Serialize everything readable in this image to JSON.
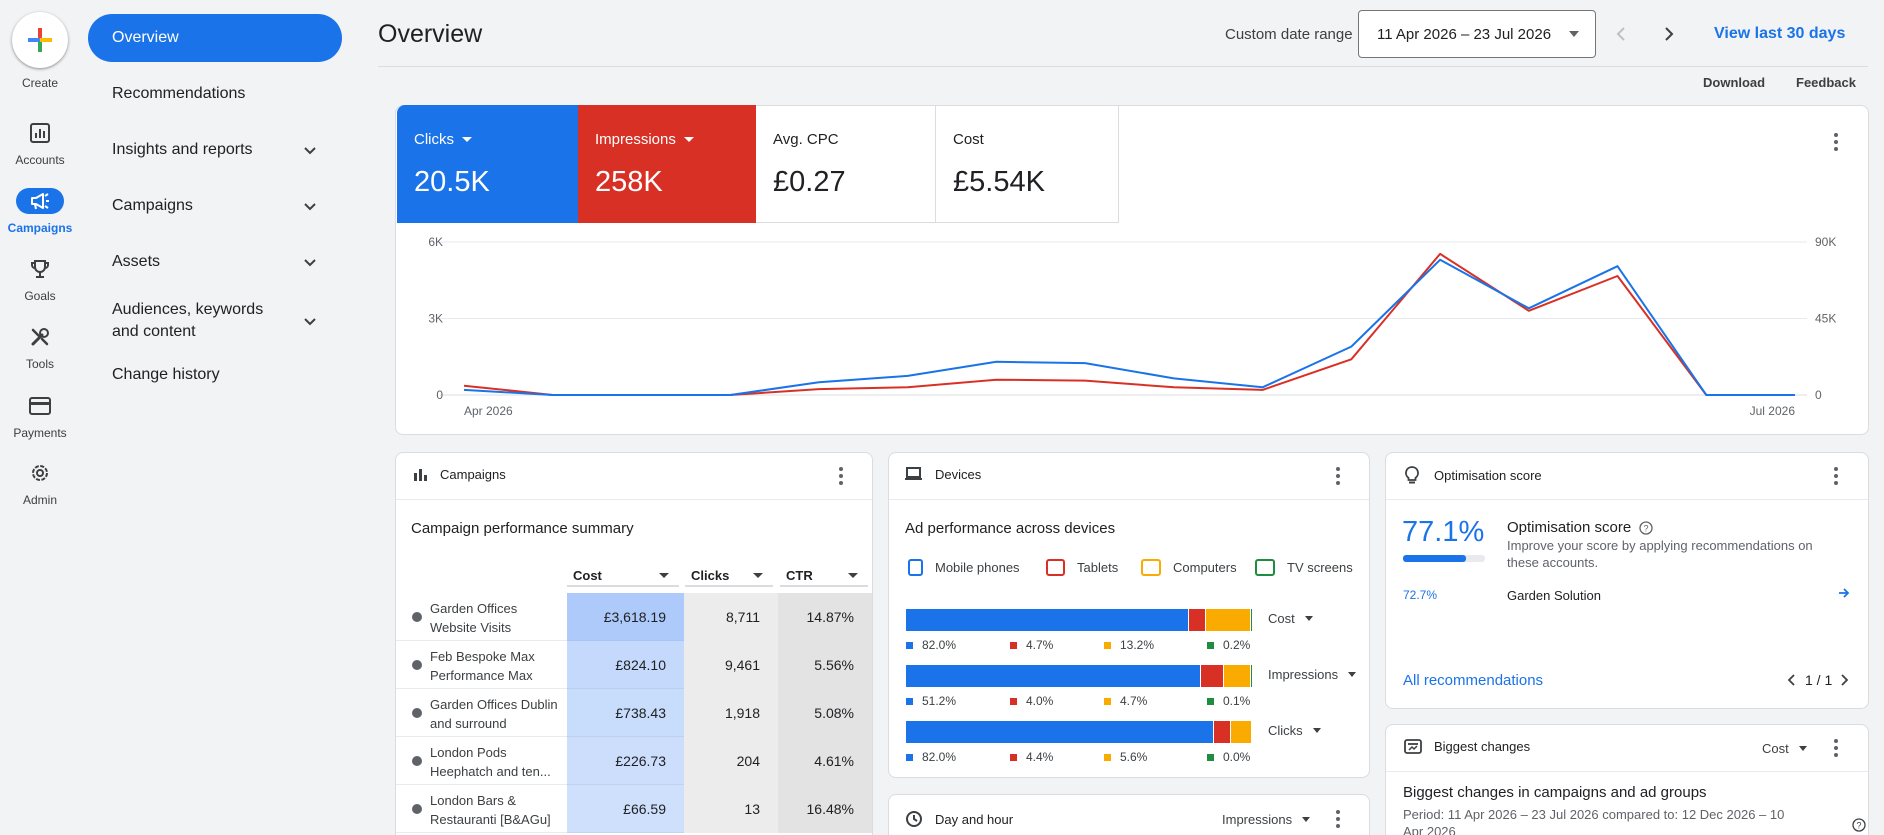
{
  "rail": {
    "create_label": "Create",
    "items": [
      {
        "label": "Accounts",
        "icon": "accounts-icon"
      },
      {
        "label": "Campaigns",
        "icon": "campaigns-icon"
      },
      {
        "label": "Goals",
        "icon": "goals-icon"
      },
      {
        "label": "Tools",
        "icon": "tools-icon"
      },
      {
        "label": "Payments",
        "icon": "payments-icon"
      },
      {
        "label": "Admin",
        "icon": "admin-icon"
      }
    ]
  },
  "nav": {
    "items": [
      {
        "label": "Overview"
      },
      {
        "label": "Recommendations"
      },
      {
        "label": "Insights and reports"
      },
      {
        "label": "Campaigns"
      },
      {
        "label": "Assets"
      },
      {
        "label": "Audiences, keywords and content"
      },
      {
        "label": "Change history"
      }
    ]
  },
  "header": {
    "title": "Overview",
    "date_label": "Custom date range",
    "date_value": "11 Apr 2026 – 23 Jul 2026",
    "view_last": "View last 30 days",
    "download": "Download",
    "feedback": "Feedback"
  },
  "metrics": [
    {
      "label": "Clicks",
      "value": "20.5K"
    },
    {
      "label": "Impressions",
      "value": "258K"
    },
    {
      "label": "Avg. CPC",
      "value": "£0.27"
    },
    {
      "label": "Cost",
      "value": "£5.54K"
    }
  ],
  "chart_data": {
    "type": "line",
    "x_start_label": "Apr 2026",
    "x_end_label": "Jul 2026",
    "left_axis": {
      "ticks": [
        "6K",
        "3K",
        "0"
      ],
      "max": 6000
    },
    "right_axis": {
      "ticks": [
        "90K",
        "45K",
        "0"
      ],
      "max": 90000
    },
    "series": [
      {
        "name": "Clicks",
        "color": "#1a73e8",
        "axis": "left",
        "values": [
          200,
          0,
          0,
          0,
          500,
          750,
          1300,
          1250,
          650,
          300,
          1900,
          5300,
          3400,
          5050,
          0,
          0
        ]
      },
      {
        "name": "Impressions",
        "color": "#d93025",
        "axis": "right",
        "values": [
          5500,
          0,
          0,
          0,
          3500,
          4500,
          9000,
          8500,
          4500,
          3000,
          21000,
          83000,
          49500,
          70000,
          0,
          0
        ]
      }
    ],
    "grid": true
  },
  "campaigns": {
    "header": "Campaigns",
    "subtitle": "Campaign performance summary",
    "columns": [
      "Cost",
      "Clicks",
      "CTR"
    ],
    "rows": [
      {
        "name": "Garden Offices Website Visits",
        "cost": "£3,618.19",
        "clicks": "8,711",
        "ctr": "14.87%",
        "intensity": 1.0
      },
      {
        "name": "Feb Bespoke Max Performance Max",
        "cost": "£824.10",
        "clicks": "9,461",
        "ctr": "5.56%",
        "intensity": 0.55
      },
      {
        "name": "Garden Offices Dublin and surround",
        "cost": "£738.43",
        "clicks": "1,918",
        "ctr": "5.08%",
        "intensity": 0.5
      },
      {
        "name": "London Pods Heephatch and ten...",
        "cost": "£226.73",
        "clicks": "204",
        "ctr": "4.61%",
        "intensity": 0.42
      },
      {
        "name": "London Bars & Restauranti [B&AGu]",
        "cost": "£66.59",
        "clicks": "13",
        "ctr": "16.48%",
        "intensity": 0.38
      }
    ]
  },
  "devices": {
    "header": "Devices",
    "subtitle": "Ad performance across devices",
    "legend": [
      {
        "label": "Mobile phones",
        "color": "#1a73e8"
      },
      {
        "label": "Tablets",
        "color": "#d93025"
      },
      {
        "label": "Computers",
        "color": "#f9ab00"
      },
      {
        "label": "TV screens",
        "color": "#1e8e3e"
      }
    ],
    "bars": [
      {
        "metric": "Cost",
        "values": [
          82.0,
          4.7,
          13.2,
          0.2
        ],
        "labels": [
          "82.0%",
          "4.7%",
          "13.2%",
          "0.2%"
        ]
      },
      {
        "metric": "Impressions",
        "values": [
          51.2,
          4.0,
          4.7,
          0.1
        ],
        "labels": [
          "51.2%",
          "4.0%",
          "4.7%",
          "0.1%"
        ]
      },
      {
        "metric": "Clicks",
        "values": [
          82.0,
          4.4,
          5.6,
          0.0
        ],
        "labels": [
          "82.0%",
          "4.4%",
          "5.6%",
          "0.0%"
        ]
      }
    ]
  },
  "optimisation": {
    "header": "Optimisation score",
    "score": "77.1%",
    "score_fraction": 0.771,
    "title": "Optimisation score",
    "description": "Improve your score by applying recommendations on these accounts.",
    "account_score": "72.7%",
    "account_name": "Garden Solution",
    "all_link": "All recommendations",
    "pager": "1 / 1"
  },
  "biggest": {
    "header": "Biggest changes",
    "metric": "Cost",
    "title": "Biggest changes in campaigns and ad groups",
    "period": "Period: 11 Apr 2026 – 23 Jul 2026 compared to: 12 Dec 2026 – 10 Apr 2026"
  },
  "dayhour": {
    "header": "Day and hour",
    "metric": "Impressions"
  }
}
